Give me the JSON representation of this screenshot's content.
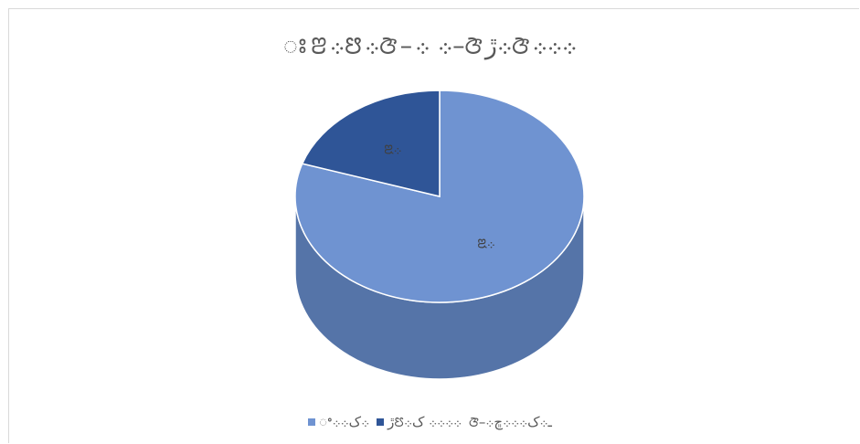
{
  "chart_data": {
    "type": "pie",
    "style": "3d",
    "title": "ꢁꢂ܀ꢅ܀ꢆ–܀ ܀–ꢆ܀ڙꢆ܀܀܀",
    "slices": [
      {
        "name": "ꢀ܀ک܀܀",
        "value": 80,
        "label": "ꢃ܀",
        "color": "#6f93d1"
      },
      {
        "name": "ڙꢄ܀܀܀܀ ک܀",
        "value": 20,
        "label": "ꢃ܀",
        "color": "#2f5597"
      }
    ],
    "legend_position": "bottom",
    "legend_extra": "ꢆ–ـ܀ک܀܀܀ڇ܀"
  }
}
